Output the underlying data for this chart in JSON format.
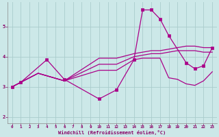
{
  "xlabel": "Windchill (Refroidissement éolien,°C)",
  "bg_color": "#cce8e8",
  "grid_color": "#aacccc",
  "line_color": "#aa0088",
  "xlim": [
    -0.5,
    23.5
  ],
  "ylim": [
    1.8,
    5.8
  ],
  "yticks": [
    2,
    3,
    4,
    5
  ],
  "xticks": [
    0,
    1,
    2,
    3,
    4,
    5,
    6,
    7,
    8,
    9,
    10,
    11,
    12,
    13,
    14,
    15,
    16,
    17,
    18,
    19,
    20,
    21,
    22,
    23
  ],
  "series": [
    {
      "x": [
        0,
        1,
        4,
        6,
        10,
        12,
        14,
        15,
        16,
        17,
        18,
        20,
        21,
        22,
        23
      ],
      "y": [
        3.0,
        3.15,
        3.9,
        3.25,
        2.6,
        2.9,
        3.9,
        5.55,
        5.55,
        5.25,
        4.7,
        3.8,
        3.6,
        3.7,
        4.3
      ],
      "marker": true
    },
    {
      "x": [
        0,
        3,
        6,
        10,
        12,
        14,
        15,
        16,
        17,
        18,
        19,
        20,
        21,
        22,
        23
      ],
      "y": [
        3.0,
        3.45,
        3.2,
        3.95,
        3.95,
        4.1,
        4.15,
        4.2,
        4.2,
        4.25,
        4.3,
        4.35,
        4.35,
        4.3,
        4.3
      ],
      "marker": false
    },
    {
      "x": [
        0,
        3,
        6,
        10,
        12,
        14,
        15,
        16,
        17,
        18,
        19,
        20,
        21,
        22,
        23
      ],
      "y": [
        3.0,
        3.45,
        3.2,
        3.75,
        3.75,
        4.0,
        4.05,
        4.1,
        4.1,
        4.15,
        4.2,
        4.2,
        4.2,
        4.15,
        4.15
      ],
      "marker": false
    },
    {
      "x": [
        0,
        3,
        6,
        10,
        12,
        14,
        15,
        16,
        17,
        18,
        19,
        20,
        21,
        22,
        23
      ],
      "y": [
        3.0,
        3.45,
        3.2,
        3.55,
        3.55,
        3.9,
        3.95,
        3.95,
        3.95,
        3.3,
        3.25,
        3.1,
        3.05,
        3.2,
        3.5
      ],
      "marker": false
    }
  ]
}
